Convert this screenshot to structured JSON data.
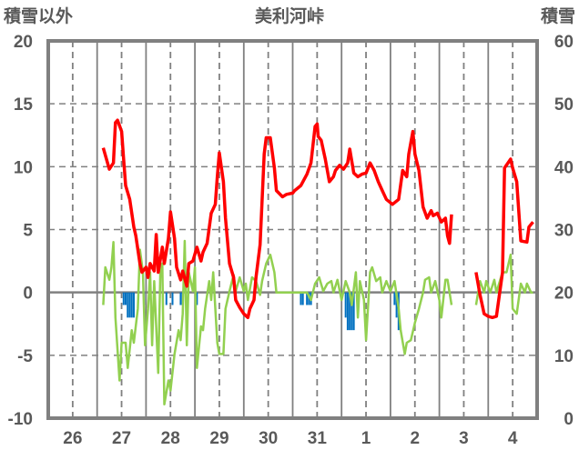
{
  "chart_data": {
    "type": "line",
    "title": "美利河峠",
    "ylabel_left": "積雪以外",
    "ylabel_right": "積雪",
    "categories": [
      "26",
      "27",
      "28",
      "29",
      "30",
      "31",
      "1",
      "2",
      "3",
      "4"
    ],
    "x_unit": "hours since day 26 00:00",
    "xlim": [
      0,
      240
    ],
    "ylim_left": [
      -10,
      20
    ],
    "yticks_left": [
      -10,
      -5,
      0,
      5,
      10,
      15,
      20
    ],
    "ylim_right": [
      0,
      60
    ],
    "yticks_right": [
      0,
      10,
      20,
      30,
      40,
      50,
      60
    ],
    "grid": true,
    "colors": {
      "temperature": "#ff0000",
      "other": "#92d050",
      "bars": "#0070c0",
      "snow": "#7030a0",
      "axis": "#808080"
    },
    "series": [
      {
        "name": "red",
        "axis": "left",
        "segments": [
          [
            [
              27,
              11.5
            ],
            [
              30,
              9.8
            ],
            [
              32,
              10.3
            ],
            [
              33,
              13.5
            ],
            [
              34,
              13.7
            ],
            [
              36,
              12.8
            ],
            [
              37,
              10.6
            ],
            [
              38,
              8.5
            ],
            [
              40,
              7.4
            ],
            [
              42,
              5.2
            ],
            [
              43,
              4.5
            ],
            [
              45,
              2.3
            ],
            [
              46,
              1.6
            ],
            [
              48,
              2.0
            ],
            [
              49,
              1.2
            ],
            [
              50,
              2.3
            ],
            [
              52,
              1.7
            ],
            [
              53,
              4.6
            ],
            [
              54,
              1.6
            ],
            [
              56,
              3.6
            ],
            [
              57,
              2.3
            ],
            [
              59,
              4.3
            ],
            [
              60,
              6.4
            ],
            [
              62,
              4.3
            ],
            [
              63,
              2.0
            ],
            [
              65,
              1.0
            ],
            [
              66,
              1.7
            ],
            [
              68,
              0.5
            ],
            [
              69,
              2.3
            ],
            [
              71,
              2.5
            ],
            [
              73,
              3.6
            ],
            [
              75,
              2.5
            ],
            [
              76,
              3.2
            ],
            [
              78,
              3.9
            ],
            [
              80,
              6.3
            ],
            [
              82,
              7.0
            ],
            [
              83,
              9.2
            ],
            [
              84,
              11.1
            ],
            [
              86,
              8.8
            ],
            [
              87,
              5.9
            ],
            [
              89,
              2.3
            ],
            [
              91,
              1.2
            ],
            [
              92,
              -0.6
            ],
            [
              94,
              -1.2
            ],
            [
              96,
              -1.7
            ],
            [
              98,
              -2.0
            ],
            [
              99,
              -1.3
            ],
            [
              101,
              -0.6
            ],
            [
              102,
              1.2
            ],
            [
              104,
              3.8
            ],
            [
              106,
              11.0
            ],
            [
              107,
              12.3
            ],
            [
              109,
              12.3
            ],
            [
              111,
              9.9
            ],
            [
              112,
              8.1
            ],
            [
              115,
              7.6
            ],
            [
              117,
              7.8
            ],
            [
              120,
              7.9
            ],
            [
              121,
              8.1
            ],
            [
              124,
              8.5
            ],
            [
              127,
              9.4
            ],
            [
              129,
              10.3
            ],
            [
              131,
              13.2
            ],
            [
              132,
              13.4
            ],
            [
              132.5,
              12.4
            ],
            [
              134,
              12.1
            ],
            [
              136,
              10.6
            ],
            [
              138,
              8.8
            ],
            [
              140,
              9.2
            ],
            [
              141,
              9.7
            ],
            [
              143,
              10.1
            ],
            [
              145,
              9.8
            ],
            [
              147,
              10.3
            ],
            [
              148,
              11.4
            ],
            [
              150,
              9.5
            ],
            [
              152,
              9.2
            ],
            [
              154,
              9.4
            ],
            [
              156,
              9.5
            ],
            [
              158,
              10.3
            ],
            [
              160,
              9.7
            ],
            [
              162,
              8.8
            ],
            [
              164,
              8.1
            ],
            [
              166,
              7.4
            ],
            [
              169,
              7.0
            ],
            [
              172,
              7.4
            ],
            [
              174,
              9.7
            ],
            [
              176,
              9.2
            ],
            [
              177,
              11.0
            ],
            [
              179,
              12.8
            ],
            [
              180,
              11.0
            ],
            [
              182,
              9.7
            ],
            [
              184,
              6.8
            ],
            [
              186,
              5.9
            ],
            [
              188,
              6.5
            ],
            [
              189,
              6.1
            ],
            [
              191,
              6.3
            ],
            [
              193,
              5.6
            ],
            [
              195,
              5.9
            ],
            [
              196,
              4.5
            ],
            [
              197,
              3.9
            ],
            [
              198,
              6.2
            ]
          ],
          [
            [
              210,
              1.6
            ],
            [
              212,
              -0.2
            ],
            [
              214,
              -1.7
            ],
            [
              216,
              -1.9
            ],
            [
              218,
              -2.0
            ],
            [
              220,
              -1.9
            ],
            [
              223,
              1.6
            ],
            [
              224,
              9.9
            ],
            [
              227,
              10.6
            ],
            [
              228,
              9.9
            ],
            [
              230,
              8.8
            ],
            [
              232,
              4.1
            ],
            [
              235,
              4.0
            ],
            [
              236,
              5.2
            ],
            [
              238,
              5.6
            ]
          ]
        ]
      },
      {
        "name": "green",
        "axis": "left",
        "segments": [
          [
            [
              27,
              -1
            ],
            [
              28,
              2
            ],
            [
              30,
              1
            ],
            [
              31,
              2
            ],
            [
              32,
              4
            ],
            [
              33,
              -2
            ],
            [
              35,
              -7
            ],
            [
              36,
              -4
            ],
            [
              38,
              -4
            ],
            [
              39,
              -6
            ],
            [
              41,
              -3
            ],
            [
              42,
              -4
            ],
            [
              44,
              -1.3
            ],
            [
              45,
              3.4
            ],
            [
              46.5,
              1.6
            ],
            [
              47.5,
              -4.2
            ],
            [
              49,
              -1.3
            ],
            [
              50,
              1.6
            ],
            [
              51,
              -4.2
            ],
            [
              52,
              0.9
            ],
            [
              54,
              -6.4
            ],
            [
              55,
              1.6
            ],
            [
              56,
              2.3
            ],
            [
              57,
              -8.9
            ],
            [
              59,
              -7
            ],
            [
              60,
              -7.8
            ],
            [
              62,
              -4.9
            ],
            [
              64,
              -3
            ],
            [
              65,
              -3.8
            ],
            [
              66,
              -1.7
            ],
            [
              67,
              4.1
            ],
            [
              68,
              -4.2
            ],
            [
              69,
              1.6
            ],
            [
              71,
              0.1
            ],
            [
              72,
              2
            ],
            [
              73,
              -6
            ],
            [
              75,
              -2.7
            ],
            [
              76,
              -3
            ],
            [
              77,
              -1.3
            ],
            [
              79,
              0.9
            ],
            [
              80,
              -0.6
            ],
            [
              81,
              1.6
            ],
            [
              83,
              -4
            ],
            [
              84,
              -4.9
            ],
            [
              86,
              -4.9
            ],
            [
              87,
              -1.3
            ],
            [
              89,
              0.1
            ],
            [
              91,
              1.4
            ],
            [
              92,
              0.1
            ],
            [
              94,
              1.2
            ],
            [
              96,
              0.1
            ],
            [
              97,
              0.7
            ],
            [
              98,
              -0.6
            ],
            [
              100,
              1.2
            ],
            [
              102,
              0.9
            ],
            [
              104,
              -0.2
            ],
            [
              105,
              0.9
            ],
            [
              107,
              2.3
            ],
            [
              109,
              3
            ],
            [
              111,
              1.6
            ],
            [
              112,
              0
            ],
            [
              123,
              0
            ],
            [
              127,
              0
            ],
            [
              129,
              -0.6
            ],
            [
              131,
              0.7
            ],
            [
              133,
              1.2
            ],
            [
              135,
              0.1
            ],
            [
              137,
              0.7
            ],
            [
              139,
              0.9
            ],
            [
              140,
              0
            ],
            [
              142,
              1
            ],
            [
              144,
              -0.6
            ],
            [
              146,
              0.9
            ],
            [
              148,
              0
            ],
            [
              149,
              -1
            ],
            [
              151,
              1.6
            ],
            [
              152,
              -2
            ],
            [
              153,
              0.9
            ],
            [
              155,
              -0.6
            ],
            [
              156,
              -3.8
            ],
            [
              158,
              1.6
            ],
            [
              159,
              2
            ],
            [
              161,
              0.9
            ],
            [
              163,
              1.2
            ],
            [
              164,
              0
            ],
            [
              166,
              0.9
            ],
            [
              168,
              0.1
            ],
            [
              170,
              0.9
            ],
            [
              172,
              -1.3
            ],
            [
              173,
              -3
            ],
            [
              175,
              -4.9
            ],
            [
              176,
              -4
            ],
            [
              178,
              -3.8
            ],
            [
              180,
              -2.4
            ],
            [
              182,
              -1.3
            ],
            [
              184,
              0
            ],
            [
              185,
              1
            ],
            [
              187,
              1.2
            ],
            [
              188,
              0
            ],
            [
              190,
              0.9
            ],
            [
              192,
              -0.6
            ],
            [
              193,
              -2
            ],
            [
              195,
              1
            ],
            [
              196,
              1
            ],
            [
              198,
              -1
            ]
          ],
          [
            [
              210,
              -1
            ],
            [
              212,
              0.9
            ],
            [
              214,
              0
            ],
            [
              215,
              0.9
            ],
            [
              217,
              0
            ],
            [
              219,
              1
            ],
            [
              220,
              0
            ],
            [
              223,
              1.6
            ],
            [
              225,
              1.6
            ],
            [
              227,
              3
            ],
            [
              228,
              -1.3
            ],
            [
              230,
              -1.7
            ],
            [
              232,
              0.7
            ],
            [
              234,
              0
            ],
            [
              235,
              0.7
            ],
            [
              237,
              0
            ],
            [
              238,
              0
            ]
          ]
        ]
      },
      {
        "name": "purple",
        "axis": "right",
        "segments": [
          [
            [
              27,
              0
            ],
            [
              198,
              0
            ]
          ],
          [
            [
              210,
              0
            ],
            [
              240,
              0
            ]
          ]
        ]
      }
    ],
    "bars": {
      "name": "blue",
      "axis": "left",
      "values": [
        [
          37,
          -1
        ],
        [
          38,
          -1
        ],
        [
          39,
          -2
        ],
        [
          40,
          -2
        ],
        [
          41,
          -2
        ],
        [
          42,
          -2
        ],
        [
          47,
          -1
        ],
        [
          58,
          -1
        ],
        [
          61,
          -1
        ],
        [
          65,
          -1
        ],
        [
          66,
          -1
        ],
        [
          73,
          -1
        ],
        [
          124,
          -1
        ],
        [
          125,
          -1
        ],
        [
          127,
          -1
        ],
        [
          128,
          -1
        ],
        [
          129,
          -1
        ],
        [
          146,
          -2
        ],
        [
          147,
          -3
        ],
        [
          148,
          -3
        ],
        [
          149,
          -3
        ],
        [
          150,
          -3
        ],
        [
          170,
          -1
        ],
        [
          171,
          -2
        ],
        [
          172,
          -3
        ]
      ]
    }
  }
}
